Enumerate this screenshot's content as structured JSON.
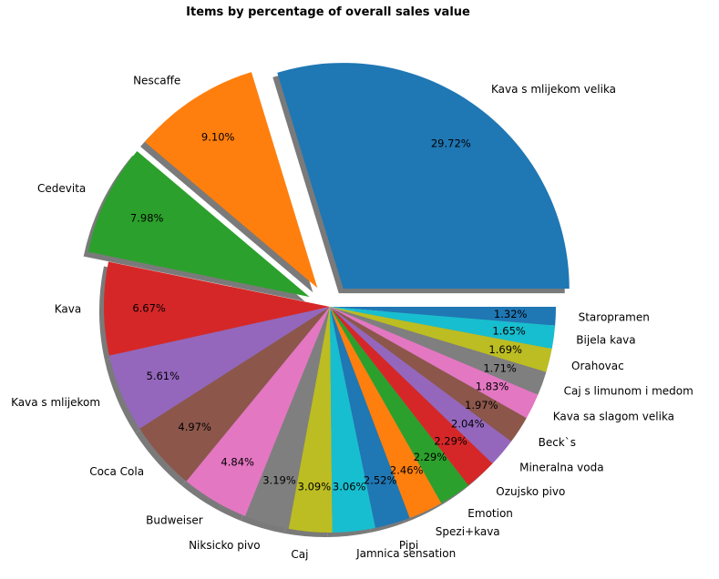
{
  "chart_data": {
    "type": "pie",
    "title": "Items by percentage of overall sales value",
    "start_angle_deg": 0,
    "direction": "counterclockwise",
    "shadow": true,
    "slices": [
      {
        "label": "Kava s mlijekom velika",
        "value": 29.72,
        "pct_label": "29.72%",
        "color": "#1f77b4",
        "explode": true
      },
      {
        "label": "Nescaffe",
        "value": 9.1,
        "pct_label": "9.10%",
        "color": "#ff7f0e",
        "explode": true
      },
      {
        "label": "Cedevita",
        "value": 7.98,
        "pct_label": "7.98%",
        "color": "#2ca02c",
        "explode": true
      },
      {
        "label": "Kava",
        "value": 6.67,
        "pct_label": "6.67%",
        "color": "#d62728",
        "explode": false
      },
      {
        "label": "Kava s mlijekom",
        "value": 5.61,
        "pct_label": "5.61%",
        "color": "#9467bd",
        "explode": false
      },
      {
        "label": "Coca Cola",
        "value": 4.97,
        "pct_label": "4.97%",
        "color": "#8c564b",
        "explode": false
      },
      {
        "label": "Budweiser",
        "value": 4.84,
        "pct_label": "4.84%",
        "color": "#e377c2",
        "explode": false
      },
      {
        "label": "Niksicko pivo",
        "value": 3.19,
        "pct_label": "3.19%",
        "color": "#7f7f7f",
        "explode": false
      },
      {
        "label": "Caj",
        "value": 3.09,
        "pct_label": "3.09%",
        "color": "#bcbd22",
        "explode": false
      },
      {
        "label": "Jamnica sensation",
        "value": 3.06,
        "pct_label": "3.06%",
        "color": "#17becf",
        "explode": false
      },
      {
        "label": "Pipi",
        "value": 2.52,
        "pct_label": "2.52%",
        "color": "#1f77b4",
        "explode": false
      },
      {
        "label": "Spezi+kava",
        "value": 2.46,
        "pct_label": "2.46%",
        "color": "#ff7f0e",
        "explode": false
      },
      {
        "label": "Emotion",
        "value": 2.29,
        "pct_label": "2.29%",
        "color": "#2ca02c",
        "explode": false
      },
      {
        "label": "Ozujsko pivo",
        "value": 2.29,
        "pct_label": "2.29%",
        "color": "#d62728",
        "explode": false
      },
      {
        "label": "Mineralna voda",
        "value": 2.04,
        "pct_label": "2.04%",
        "color": "#9467bd",
        "explode": false
      },
      {
        "label": "Beck`s",
        "value": 1.97,
        "pct_label": "1.97%",
        "color": "#8c564b",
        "explode": false
      },
      {
        "label": "Kava sa slagom velika",
        "value": 1.83,
        "pct_label": "1.83%",
        "color": "#e377c2",
        "explode": false
      },
      {
        "label": "Caj s limunom i medom",
        "value": 1.71,
        "pct_label": "1.71%",
        "color": "#7f7f7f",
        "explode": false
      },
      {
        "label": "Orahovac",
        "value": 1.69,
        "pct_label": "1.69%",
        "color": "#bcbd22",
        "explode": false
      },
      {
        "label": "Bijela kava",
        "value": 1.65,
        "pct_label": "1.65%",
        "color": "#17becf",
        "explode": false
      },
      {
        "label": "Staropramen",
        "value": 1.32,
        "pct_label": "1.32%",
        "color": "#1f77b4",
        "explode": false
      }
    ]
  }
}
